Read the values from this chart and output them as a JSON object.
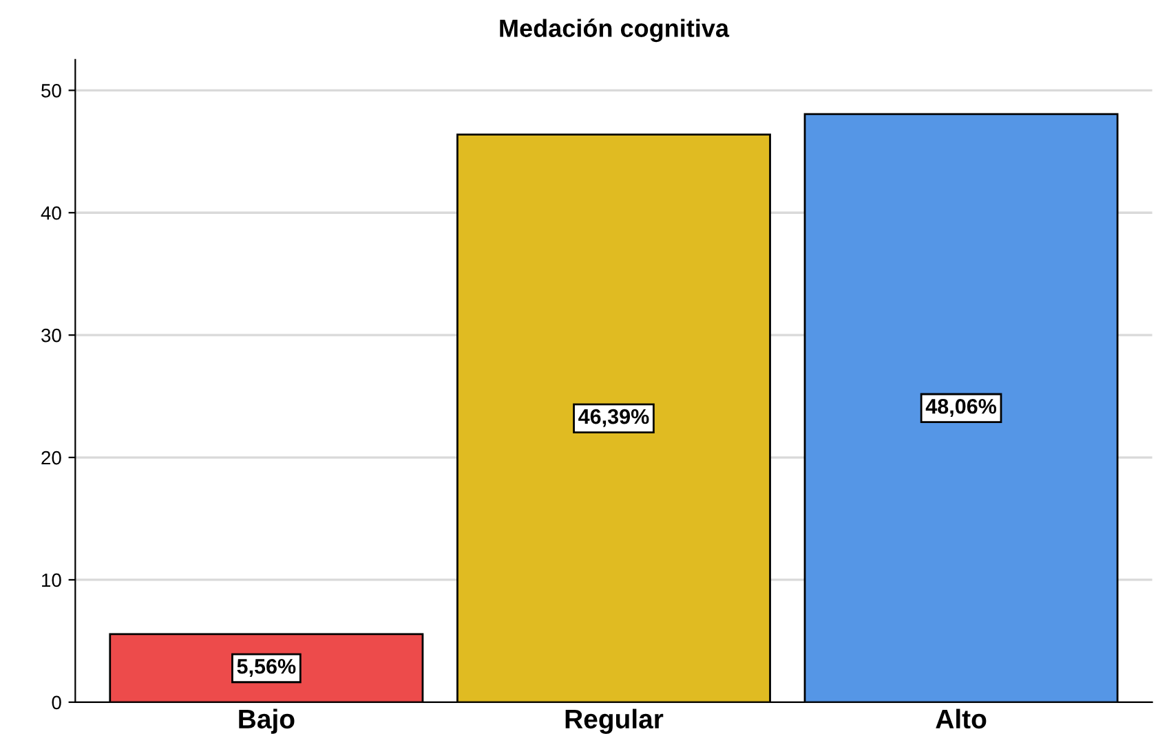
{
  "chart_data": {
    "type": "bar",
    "title": "Medación cognitiva",
    "categories": [
      "Bajo",
      "Regular",
      "Alto"
    ],
    "values": [
      5.56,
      46.39,
      48.06
    ],
    "colors": [
      "#ed4b4b",
      "#e0bb22",
      "#5596e6"
    ],
    "value_labels": [
      "5,56%",
      "46,39%",
      "48,06%"
    ],
    "ylim": [
      0,
      52.5
    ],
    "yticks": [
      0,
      10,
      20,
      30,
      40,
      50
    ],
    "grid": "y",
    "legend": false
  }
}
